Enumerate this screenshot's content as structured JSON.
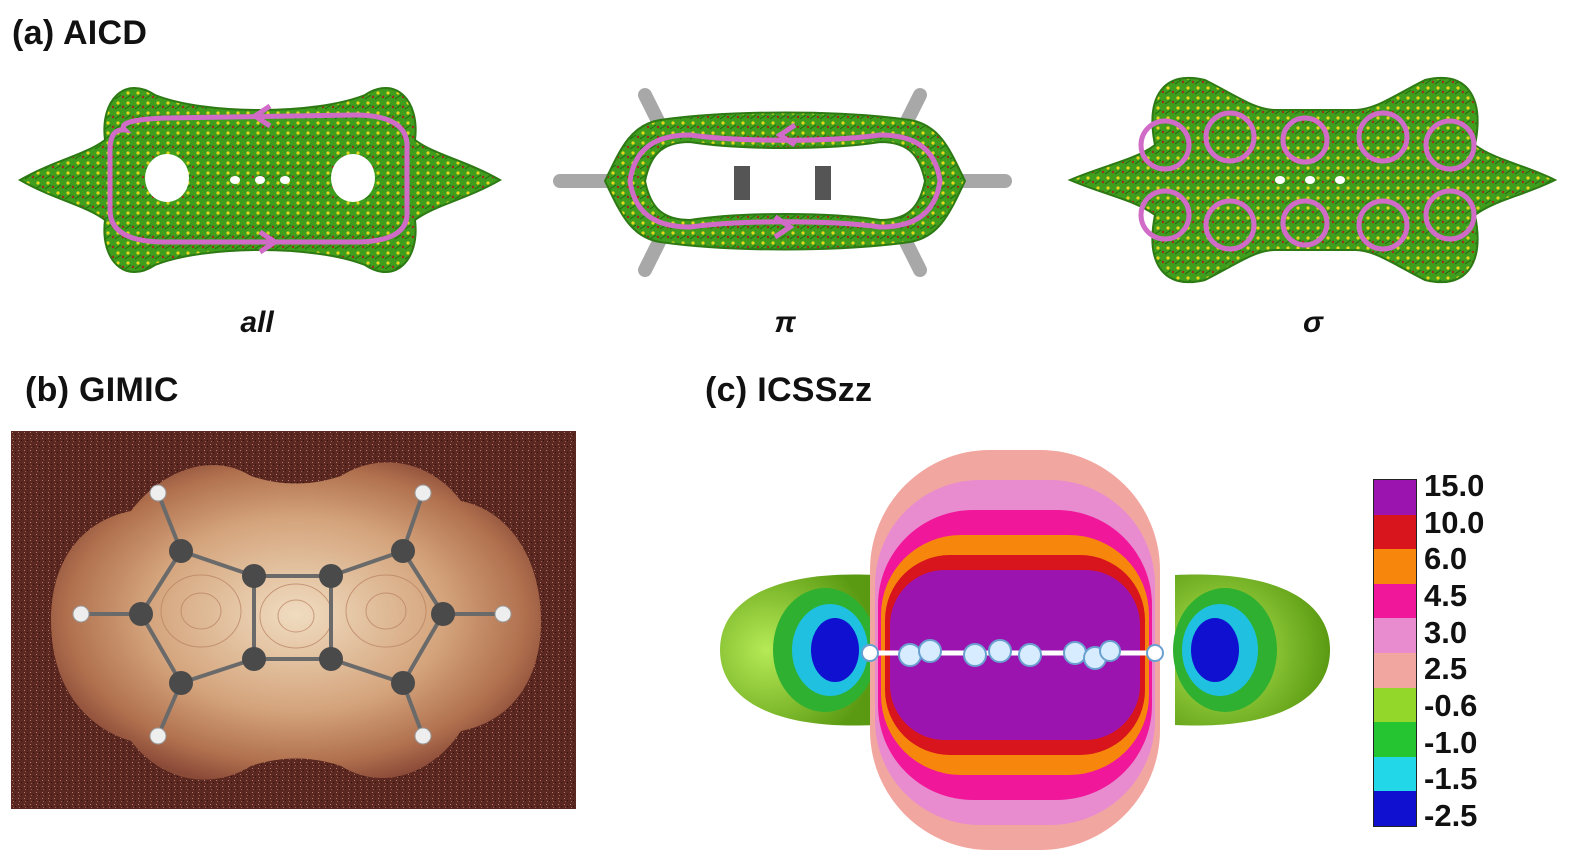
{
  "panels": {
    "a": {
      "title": "(a) AICD",
      "labels": [
        "all",
        "π",
        "σ"
      ]
    },
    "b": {
      "title": "(b) GIMIC"
    },
    "c": {
      "title": "(c) ICSSzz"
    }
  },
  "colorbar": {
    "ticks": [
      "15.0",
      "10.0",
      "6.0",
      "4.5",
      "3.0",
      "2.5",
      "-0.6",
      "-1.0",
      "-1.5",
      "-2.5"
    ],
    "colors": [
      "#9b14b0",
      "#d8141c",
      "#f7870c",
      "#f0179b",
      "#e88ccf",
      "#f2a6a0",
      "#92d72a",
      "#24c530",
      "#22d7e8",
      "#1010d0"
    ]
  },
  "colors": {
    "aicd_green": "#3f9e1e",
    "aicd_yellow": "#e8d61a",
    "current_path": "#d06bc8",
    "gimic_bg": "#5a2820",
    "gimic_field": "#c98b68",
    "atom": "#4a4a4a"
  }
}
